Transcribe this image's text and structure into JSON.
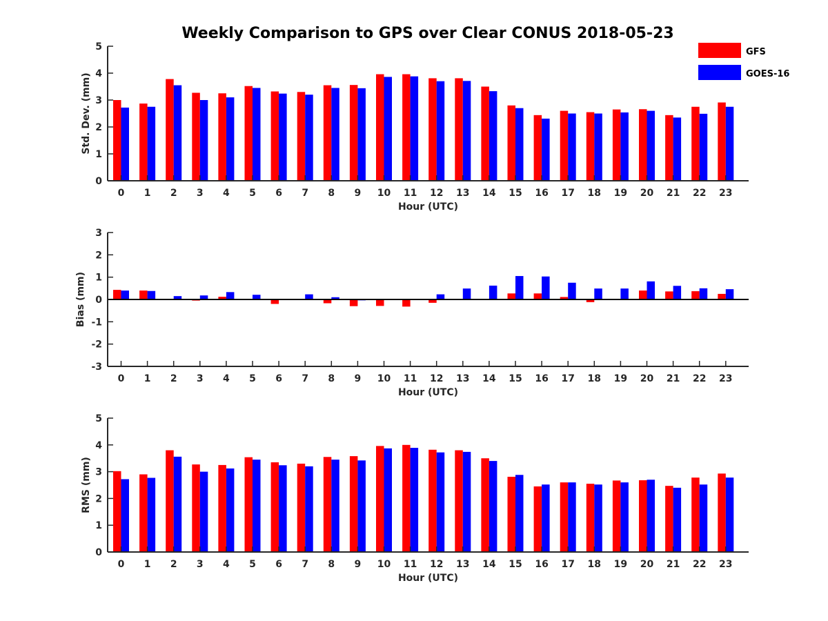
{
  "title": "Weekly Comparison to GPS over Clear CONUS 2018-05-23",
  "legend": {
    "placement": "top-right",
    "entries": [
      {
        "label": "GFS",
        "color": "#ff0000"
      },
      {
        "label": "GOES-16",
        "color": "#0000ff"
      }
    ]
  },
  "chart_data": [
    {
      "type": "bar",
      "xlabel": "Hour (UTC)",
      "ylabel": "Std. Dev. (mm)",
      "ylim": [
        0,
        5
      ],
      "yticks": [
        "0",
        "1",
        "2",
        "3",
        "4",
        "5"
      ],
      "categories": [
        "0",
        "1",
        "2",
        "3",
        "4",
        "5",
        "6",
        "7",
        "8",
        "9",
        "10",
        "11",
        "12",
        "13",
        "14",
        "15",
        "16",
        "17",
        "18",
        "19",
        "20",
        "21",
        "22",
        "23"
      ],
      "series": [
        {
          "name": "GFS",
          "color": "#ff0000",
          "values": [
            3.0,
            2.87,
            3.78,
            3.27,
            3.25,
            3.52,
            3.32,
            3.3,
            3.55,
            3.56,
            3.96,
            3.96,
            3.81,
            3.81,
            3.5,
            2.8,
            2.44,
            2.6,
            2.55,
            2.65,
            2.66,
            2.44,
            2.75,
            2.91
          ]
        },
        {
          "name": "GOES-16",
          "color": "#0000ff",
          "values": [
            2.72,
            2.75,
            3.55,
            3.0,
            3.1,
            3.45,
            3.24,
            3.2,
            3.45,
            3.44,
            3.86,
            3.88,
            3.7,
            3.71,
            3.33,
            2.7,
            2.31,
            2.5,
            2.5,
            2.54,
            2.6,
            2.35,
            2.49,
            2.75
          ]
        }
      ]
    },
    {
      "type": "bar",
      "xlabel": "Hour (UTC)",
      "ylabel": "Bias (mm)",
      "ylim": [
        -3,
        3
      ],
      "yticks": [
        "-3",
        "-2",
        "-1",
        "0",
        "1",
        "2",
        "3"
      ],
      "categories": [
        "0",
        "1",
        "2",
        "3",
        "4",
        "5",
        "6",
        "7",
        "8",
        "9",
        "10",
        "11",
        "12",
        "13",
        "14",
        "15",
        "16",
        "17",
        "18",
        "19",
        "20",
        "21",
        "22",
        "23"
      ],
      "series": [
        {
          "name": "GFS",
          "color": "#ff0000",
          "values": [
            0.43,
            0.4,
            0.0,
            -0.05,
            0.12,
            0.0,
            -0.2,
            0.0,
            -0.17,
            -0.3,
            -0.29,
            -0.32,
            -0.15,
            0.03,
            0.0,
            0.27,
            0.27,
            0.11,
            -0.12,
            0.0,
            0.4,
            0.36,
            0.37,
            0.25
          ]
        },
        {
          "name": "GOES-16",
          "color": "#0000ff",
          "values": [
            0.4,
            0.38,
            0.15,
            0.18,
            0.33,
            0.21,
            0.03,
            0.23,
            0.1,
            -0.04,
            -0.03,
            -0.02,
            0.23,
            0.49,
            0.62,
            1.05,
            1.03,
            0.75,
            0.49,
            0.49,
            0.81,
            0.61,
            0.5,
            0.46
          ]
        }
      ]
    },
    {
      "type": "bar",
      "xlabel": "Hour (UTC)",
      "ylabel": "RMS (mm)",
      "ylim": [
        0,
        5
      ],
      "yticks": [
        "0",
        "1",
        "2",
        "3",
        "4",
        "5"
      ],
      "categories": [
        "0",
        "1",
        "2",
        "3",
        "4",
        "5",
        "6",
        "7",
        "8",
        "9",
        "10",
        "11",
        "12",
        "13",
        "14",
        "15",
        "16",
        "17",
        "18",
        "19",
        "20",
        "21",
        "22",
        "23"
      ],
      "series": [
        {
          "name": "GFS",
          "color": "#ff0000",
          "values": [
            3.02,
            2.9,
            3.8,
            3.27,
            3.25,
            3.54,
            3.35,
            3.3,
            3.55,
            3.58,
            3.96,
            4.0,
            3.82,
            3.8,
            3.5,
            2.81,
            2.45,
            2.6,
            2.55,
            2.67,
            2.68,
            2.47,
            2.78,
            2.93
          ]
        },
        {
          "name": "GOES-16",
          "color": "#0000ff",
          "values": [
            2.72,
            2.77,
            3.56,
            3.0,
            3.12,
            3.45,
            3.24,
            3.2,
            3.45,
            3.42,
            3.87,
            3.89,
            3.72,
            3.74,
            3.4,
            2.88,
            2.52,
            2.6,
            2.52,
            2.6,
            2.7,
            2.4,
            2.52,
            2.78
          ]
        }
      ]
    }
  ]
}
